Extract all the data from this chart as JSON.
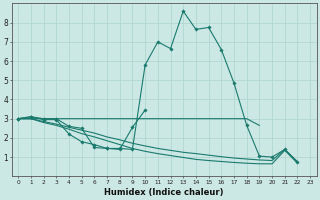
{
  "xlabel": "Humidex (Indice chaleur)",
  "bg_color": "#cce8e4",
  "grid_color": "#b0d8d0",
  "line_color": "#1a7a6e",
  "xlim": [
    -0.5,
    23.5
  ],
  "ylim": [
    0,
    9
  ],
  "xticks": [
    0,
    1,
    2,
    3,
    4,
    5,
    6,
    7,
    8,
    9,
    10,
    11,
    12,
    13,
    14,
    15,
    16,
    17,
    18,
    19,
    20,
    21,
    22,
    23
  ],
  "yticks": [
    1,
    2,
    3,
    4,
    5,
    6,
    7,
    8
  ],
  "series": [
    {
      "x": [
        0,
        1,
        2,
        3,
        4,
        5,
        6,
        7,
        8,
        9,
        10,
        11,
        12,
        13,
        14,
        15,
        16,
        17,
        18,
        19,
        20,
        21,
        22
      ],
      "y": [
        3.0,
        3.1,
        3.0,
        3.0,
        2.6,
        2.5,
        1.5,
        1.45,
        1.45,
        1.4,
        5.8,
        7.0,
        6.65,
        8.6,
        7.65,
        7.75,
        6.6,
        4.85,
        2.65,
        1.05,
        1.0,
        1.4,
        0.75
      ],
      "marker": true
    },
    {
      "x": [
        0,
        1,
        2,
        3,
        4,
        5,
        6,
        7,
        8,
        9,
        10
      ],
      "y": [
        3.0,
        3.1,
        2.95,
        2.95,
        2.2,
        1.8,
        1.65,
        1.45,
        1.4,
        2.55,
        3.45
      ],
      "marker": true
    },
    {
      "x": [
        0,
        1,
        2,
        3,
        4,
        5,
        6,
        7,
        8,
        9,
        10,
        11,
        12,
        13,
        14,
        15,
        16,
        17,
        18,
        19
      ],
      "y": [
        3.0,
        3.0,
        3.0,
        3.0,
        3.0,
        3.0,
        3.0,
        3.0,
        3.0,
        3.0,
        3.0,
        3.0,
        3.0,
        3.0,
        3.0,
        3.0,
        3.0,
        3.0,
        3.0,
        2.65
      ],
      "marker": false
    },
    {
      "x": [
        0,
        1,
        2,
        3,
        4,
        5,
        6,
        7,
        8,
        9,
        10,
        11,
        12,
        13,
        14,
        15,
        16,
        17,
        18,
        19,
        20,
        21,
        22
      ],
      "y": [
        3.0,
        3.0,
        2.85,
        2.72,
        2.55,
        2.4,
        2.25,
        2.05,
        1.9,
        1.72,
        1.58,
        1.45,
        1.35,
        1.25,
        1.18,
        1.1,
        1.02,
        0.95,
        0.9,
        0.85,
        0.82,
        1.4,
        0.75
      ],
      "marker": false
    },
    {
      "x": [
        0,
        1,
        2,
        3,
        4,
        5,
        6,
        7,
        8,
        9,
        10,
        11,
        12,
        13,
        14,
        15,
        16,
        17,
        18,
        19,
        20,
        21,
        22
      ],
      "y": [
        3.0,
        3.0,
        2.8,
        2.65,
        2.45,
        2.22,
        2.05,
        1.85,
        1.65,
        1.45,
        1.3,
        1.18,
        1.08,
        0.98,
        0.88,
        0.82,
        0.77,
        0.72,
        0.68,
        0.65,
        0.65,
        1.35,
        0.68
      ],
      "marker": false
    }
  ]
}
